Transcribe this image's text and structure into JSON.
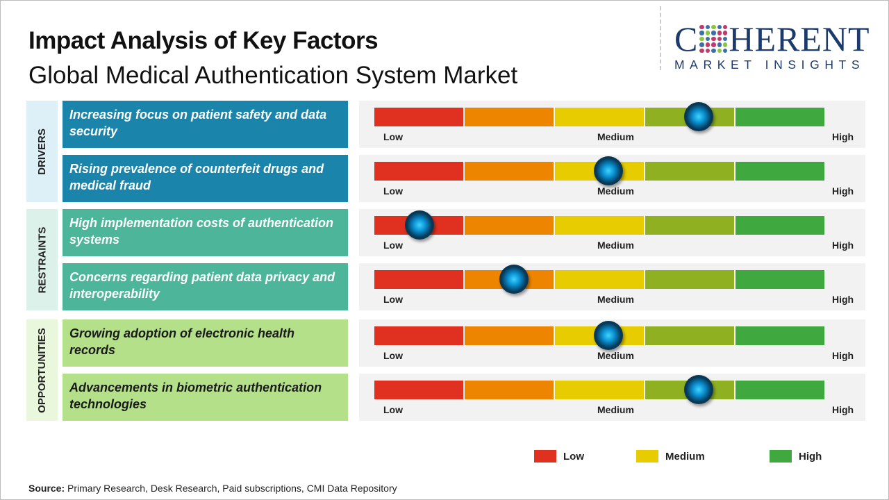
{
  "title": "Impact Analysis of Key Factors",
  "subtitle": "Global Medical Authentication System Market",
  "logo": {
    "main_before": "C",
    "main_after": "HERENT",
    "sub": "MARKET INSIGHTS"
  },
  "colors": {
    "low": "#e03020",
    "low_mid": "#ee8500",
    "medium": "#e6cc00",
    "mid_high": "#8fb021",
    "high": "#3fa83f",
    "drivers": "#1a84ab",
    "restraints": "#4cb59a",
    "opportunities": "#b4e08a",
    "drivers_tag": "#ddf0f8",
    "restraints_tag": "#dcf1ea",
    "opportunities_tag": "#e9f7dc"
  },
  "scale": {
    "low": "Low",
    "medium": "Medium",
    "high": "High"
  },
  "categories": [
    {
      "label": "DRIVERS",
      "key": "drivers"
    },
    {
      "label": "RESTRAINTS",
      "key": "restraints"
    },
    {
      "label": "OPPORTUNITIES",
      "key": "opportunities"
    }
  ],
  "chart_data": {
    "type": "gauge",
    "title": "Impact Analysis of Key Factors",
    "scale_range": [
      0,
      100
    ],
    "factors": [
      {
        "category": "DRIVERS",
        "text": "Increasing focus on patient safety and data security",
        "impact": 72
      },
      {
        "category": "DRIVERS",
        "text": "Rising prevalence of counterfeit drugs and medical fraud",
        "impact": 52
      },
      {
        "category": "RESTRAINTS",
        "text": "High implementation costs of authentication systems",
        "impact": 10
      },
      {
        "category": "RESTRAINTS",
        "text": "Concerns regarding patient data privacy and interoperability",
        "impact": 31
      },
      {
        "category": "OPPORTUNITIES",
        "text": "Growing adoption of electronic health records",
        "impact": 52
      },
      {
        "category": "OPPORTUNITIES",
        "text": "Advancements in biometric authentication technologies",
        "impact": 72
      }
    ],
    "legend": [
      "Low",
      "Medium",
      "High"
    ]
  },
  "source": {
    "label": "Source:",
    "text": " Primary Research, Desk Research, Paid subscriptions, CMI Data Repository"
  }
}
